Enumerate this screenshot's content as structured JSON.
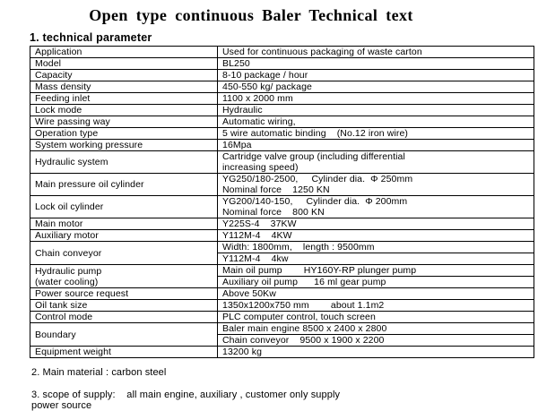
{
  "page": {
    "title": "Open type continuous Baler Technical text",
    "section_heading": "1. technical parameter",
    "note_main_material": "2. Main material : carbon steel",
    "note_scope_of_supply": "3. scope of supply:    all main engine, auxiliary , customer only supply\npower source"
  },
  "table": {
    "rows": [
      {
        "label": "Application",
        "values": [
          "Used for continuous packaging of waste carton"
        ]
      },
      {
        "label": "Model",
        "values": [
          "BL250"
        ]
      },
      {
        "label": "Capacity",
        "values": [
          "8-10 package / hour"
        ]
      },
      {
        "label": "Mass density",
        "values": [
          "450-550 kg/ package"
        ]
      },
      {
        "label": "Feeding inlet",
        "values": [
          "1100 x 2000 mm"
        ]
      },
      {
        "label": "Lock mode",
        "values": [
          "Hydraulic"
        ]
      },
      {
        "label": "Wire passing way",
        "values": [
          "Automatic wiring,"
        ]
      },
      {
        "label": "Operation type",
        "values": [
          "5 wire automatic binding    (No.12 iron wire)"
        ]
      },
      {
        "label": "System working pressure",
        "values": [
          "16Mpa"
        ]
      },
      {
        "label": "Hydraulic system",
        "values": [
          "Cartridge valve group (including differential\nincreasing speed)"
        ]
      },
      {
        "label": "Main pressure oil cylinder",
        "values": [
          "YG250/180-2500,     Cylinder dia.  Φ 250mm\nNominal force    1250 KN"
        ]
      },
      {
        "label": "Lock oil cylinder",
        "values": [
          "YG200/140-150,     Cylinder dia.  Φ 200mm\nNominal force    800 KN"
        ]
      },
      {
        "label": "Main motor",
        "values": [
          "Y225S-4    37KW"
        ]
      },
      {
        "label": "Auxiliary motor",
        "values": [
          "Y112M-4    4KW"
        ]
      },
      {
        "label": "Chain conveyor",
        "values": [
          "Width: 1800mm,    length : 9500mm",
          "Y112M-4    4kw"
        ]
      },
      {
        "label": "Hydraulic pump\n(water cooling)",
        "values": [
          "Main oil pump        HY160Y-RP plunger pump",
          "Auxiliary oil pump      16 ml gear pump"
        ]
      },
      {
        "label": "Power source request",
        "values": [
          "Above 50Kw"
        ]
      },
      {
        "label": "Oil tank size",
        "values": [
          "1350x1200x750 mm        about 1.1m2"
        ]
      },
      {
        "label": "Control mode",
        "values": [
          "PLC computer control, touch screen"
        ]
      },
      {
        "label": "Boundary",
        "values": [
          "Baler main engine 8500 x 2400 x 2800",
          "Chain conveyor    9500 x 1900 x 2200"
        ]
      },
      {
        "label": "Equipment weight",
        "values": [
          "13200 kg"
        ]
      }
    ]
  }
}
